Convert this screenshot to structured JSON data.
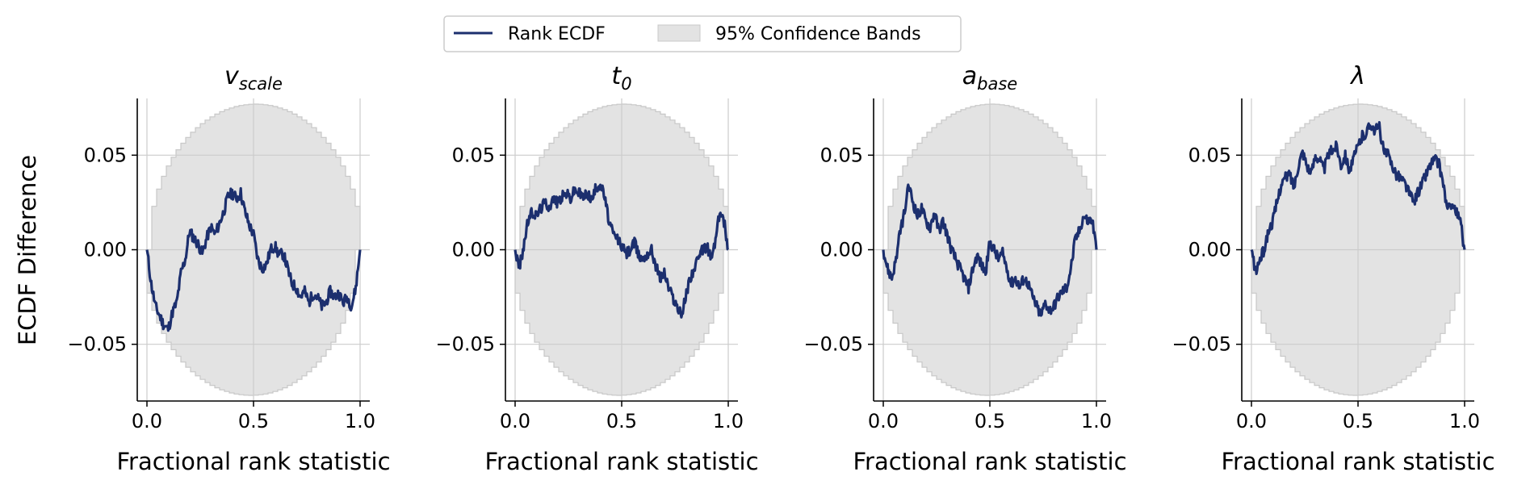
{
  "figure": {
    "ylabel": "ECDF Difference",
    "legend": {
      "placement": "top-center",
      "entries": [
        {
          "label": "Rank ECDF",
          "kind": "line",
          "color": "#1c2f6e"
        },
        {
          "label": "95% Confidence Bands",
          "kind": "patch",
          "color": "#e3e3e3",
          "edge": "#c8c8c8"
        }
      ]
    },
    "colors": {
      "line": "#1c2f6e",
      "band_fill": "#e3e3e3",
      "band_edge": "#c8c8c8",
      "grid": "#cccccc"
    }
  },
  "chart_data": [
    {
      "type": "line",
      "title": {
        "base": "v",
        "sub": "scale"
      },
      "xlabel": "Fractional rank statistic",
      "xlim": [
        0,
        1
      ],
      "ylim": [
        -0.08,
        0.08
      ],
      "xticks": [
        0.0,
        0.5,
        1.0
      ],
      "xtick_labels": [
        "0.0",
        "0.5",
        "1.0"
      ],
      "yticks": [
        -0.05,
        0.0,
        0.05
      ],
      "ytick_labels": [
        "−0.05",
        "0.00",
        "0.05"
      ],
      "show_yticks": true,
      "grid": true,
      "band": {
        "max": 0.077
      },
      "series": [
        {
          "x": [
            0,
            0.02,
            0.04,
            0.06,
            0.08,
            0.1,
            0.12,
            0.14,
            0.16,
            0.18,
            0.2,
            0.22,
            0.24,
            0.26,
            0.28,
            0.3,
            0.32,
            0.34,
            0.36,
            0.38,
            0.4,
            0.42,
            0.44,
            0.46,
            0.48,
            0.5,
            0.52,
            0.54,
            0.56,
            0.58,
            0.6,
            0.62,
            0.64,
            0.66,
            0.68,
            0.7,
            0.72,
            0.74,
            0.76,
            0.78,
            0.8,
            0.82,
            0.84,
            0.86,
            0.88,
            0.9,
            0.92,
            0.94,
            0.96,
            0.98,
            1.0
          ],
          "y": [
            0.0,
            -0.018,
            -0.03,
            -0.035,
            -0.04,
            -0.042,
            -0.033,
            -0.028,
            -0.012,
            -0.005,
            0.01,
            0.006,
            0.003,
            -0.002,
            0.006,
            0.012,
            0.008,
            0.014,
            0.02,
            0.028,
            0.03,
            0.027,
            0.03,
            0.02,
            0.013,
            0.008,
            -0.005,
            -0.01,
            -0.008,
            0.0,
            0.002,
            -0.003,
            -0.002,
            -0.01,
            -0.018,
            -0.02,
            -0.025,
            -0.022,
            -0.028,
            -0.023,
            -0.025,
            -0.03,
            -0.028,
            -0.022,
            -0.025,
            -0.023,
            -0.028,
            -0.025,
            -0.03,
            -0.02,
            0.0
          ]
        }
      ]
    },
    {
      "type": "line",
      "title": {
        "base": "t",
        "sub": "0"
      },
      "xlabel": "Fractional rank statistic",
      "xlim": [
        0,
        1
      ],
      "ylim": [
        -0.08,
        0.08
      ],
      "xticks": [
        0.0,
        0.5,
        1.0
      ],
      "xtick_labels": [
        "0.0",
        "0.5",
        "1.0"
      ],
      "yticks": [
        -0.05,
        0.0,
        0.05
      ],
      "ytick_labels": [
        "−0.05",
        "0.00",
        "0.05"
      ],
      "show_yticks": true,
      "grid": true,
      "band": {
        "max": 0.077
      },
      "series": [
        {
          "x": [
            0,
            0.02,
            0.04,
            0.06,
            0.08,
            0.1,
            0.12,
            0.14,
            0.16,
            0.18,
            0.2,
            0.22,
            0.24,
            0.26,
            0.28,
            0.3,
            0.32,
            0.34,
            0.36,
            0.38,
            0.4,
            0.42,
            0.44,
            0.46,
            0.48,
            0.5,
            0.52,
            0.54,
            0.56,
            0.58,
            0.6,
            0.62,
            0.64,
            0.66,
            0.68,
            0.7,
            0.72,
            0.74,
            0.76,
            0.78,
            0.8,
            0.82,
            0.84,
            0.86,
            0.88,
            0.9,
            0.92,
            0.94,
            0.96,
            0.98,
            1.0
          ],
          "y": [
            0.0,
            -0.01,
            0.002,
            0.015,
            0.02,
            0.018,
            0.022,
            0.025,
            0.023,
            0.027,
            0.025,
            0.028,
            0.03,
            0.027,
            0.032,
            0.03,
            0.028,
            0.03,
            0.026,
            0.033,
            0.035,
            0.028,
            0.015,
            0.008,
            0.006,
            0.002,
            -0.002,
            0.0,
            0.004,
            -0.003,
            -0.005,
            -0.002,
            0.0,
            -0.008,
            -0.015,
            -0.012,
            -0.02,
            -0.025,
            -0.03,
            -0.035,
            -0.025,
            -0.015,
            -0.01,
            -0.005,
            0.0,
            0.002,
            -0.005,
            0.005,
            0.02,
            0.015,
            0.0
          ]
        }
      ]
    },
    {
      "type": "line",
      "title": {
        "base": "a",
        "sub": "base"
      },
      "xlabel": "Fractional rank statistic",
      "xlim": [
        0,
        1
      ],
      "ylim": [
        -0.08,
        0.08
      ],
      "xticks": [
        0.0,
        0.5,
        1.0
      ],
      "xtick_labels": [
        "0.0",
        "0.5",
        "1.0"
      ],
      "yticks": [
        -0.05,
        0.0,
        0.05
      ],
      "ytick_labels": [
        "−0.05",
        "0.00",
        "0.05"
      ],
      "show_yticks": true,
      "grid": true,
      "band": {
        "max": 0.077
      },
      "series": [
        {
          "x": [
            0,
            0.02,
            0.04,
            0.06,
            0.08,
            0.1,
            0.12,
            0.14,
            0.16,
            0.18,
            0.2,
            0.22,
            0.24,
            0.26,
            0.28,
            0.3,
            0.32,
            0.34,
            0.36,
            0.38,
            0.4,
            0.42,
            0.44,
            0.46,
            0.48,
            0.5,
            0.52,
            0.54,
            0.56,
            0.58,
            0.6,
            0.62,
            0.64,
            0.66,
            0.68,
            0.7,
            0.72,
            0.74,
            0.76,
            0.78,
            0.8,
            0.82,
            0.84,
            0.86,
            0.88,
            0.9,
            0.92,
            0.94,
            0.96,
            0.98,
            1.0
          ],
          "y": [
            0.0,
            -0.01,
            -0.015,
            -0.005,
            0.01,
            0.02,
            0.034,
            0.025,
            0.018,
            0.022,
            0.015,
            0.012,
            0.02,
            0.01,
            0.015,
            0.008,
            0.0,
            -0.005,
            -0.01,
            -0.015,
            -0.02,
            -0.01,
            -0.003,
            -0.008,
            -0.012,
            0.004,
            0.0,
            -0.005,
            -0.002,
            -0.01,
            -0.018,
            -0.015,
            -0.02,
            -0.015,
            -0.018,
            -0.025,
            -0.03,
            -0.035,
            -0.028,
            -0.032,
            -0.03,
            -0.025,
            -0.022,
            -0.02,
            -0.01,
            0.005,
            0.01,
            0.018,
            0.015,
            0.016,
            0.0
          ]
        }
      ]
    },
    {
      "type": "line",
      "title": {
        "base": "λ",
        "sub": ""
      },
      "xlabel": "Fractional rank statistic",
      "xlim": [
        0,
        1
      ],
      "ylim": [
        -0.08,
        0.08
      ],
      "xticks": [
        0.0,
        0.5,
        1.0
      ],
      "xtick_labels": [
        "0.0",
        "0.5",
        "1.0"
      ],
      "yticks": [
        -0.05,
        0.0,
        0.05
      ],
      "ytick_labels": [
        "−0.05",
        "0.00",
        "0.05"
      ],
      "show_yticks": true,
      "grid": true,
      "band": {
        "max": 0.077
      },
      "series": [
        {
          "x": [
            0,
            0.02,
            0.04,
            0.06,
            0.08,
            0.1,
            0.12,
            0.14,
            0.16,
            0.18,
            0.2,
            0.22,
            0.24,
            0.26,
            0.28,
            0.3,
            0.32,
            0.34,
            0.36,
            0.38,
            0.4,
            0.42,
            0.44,
            0.46,
            0.48,
            0.5,
            0.52,
            0.54,
            0.56,
            0.58,
            0.6,
            0.62,
            0.64,
            0.66,
            0.68,
            0.7,
            0.72,
            0.74,
            0.76,
            0.78,
            0.8,
            0.82,
            0.84,
            0.86,
            0.88,
            0.9,
            0.92,
            0.94,
            0.96,
            0.98,
            1.0
          ],
          "y": [
            0.0,
            -0.012,
            -0.005,
            0.0,
            0.01,
            0.015,
            0.025,
            0.035,
            0.038,
            0.04,
            0.033,
            0.045,
            0.052,
            0.045,
            0.04,
            0.05,
            0.048,
            0.042,
            0.05,
            0.053,
            0.055,
            0.045,
            0.05,
            0.042,
            0.048,
            0.055,
            0.06,
            0.062,
            0.067,
            0.063,
            0.065,
            0.052,
            0.05,
            0.045,
            0.04,
            0.038,
            0.035,
            0.03,
            0.025,
            0.03,
            0.035,
            0.04,
            0.045,
            0.048,
            0.045,
            0.035,
            0.02,
            0.025,
            0.02,
            0.015,
            0.0
          ]
        }
      ]
    }
  ]
}
